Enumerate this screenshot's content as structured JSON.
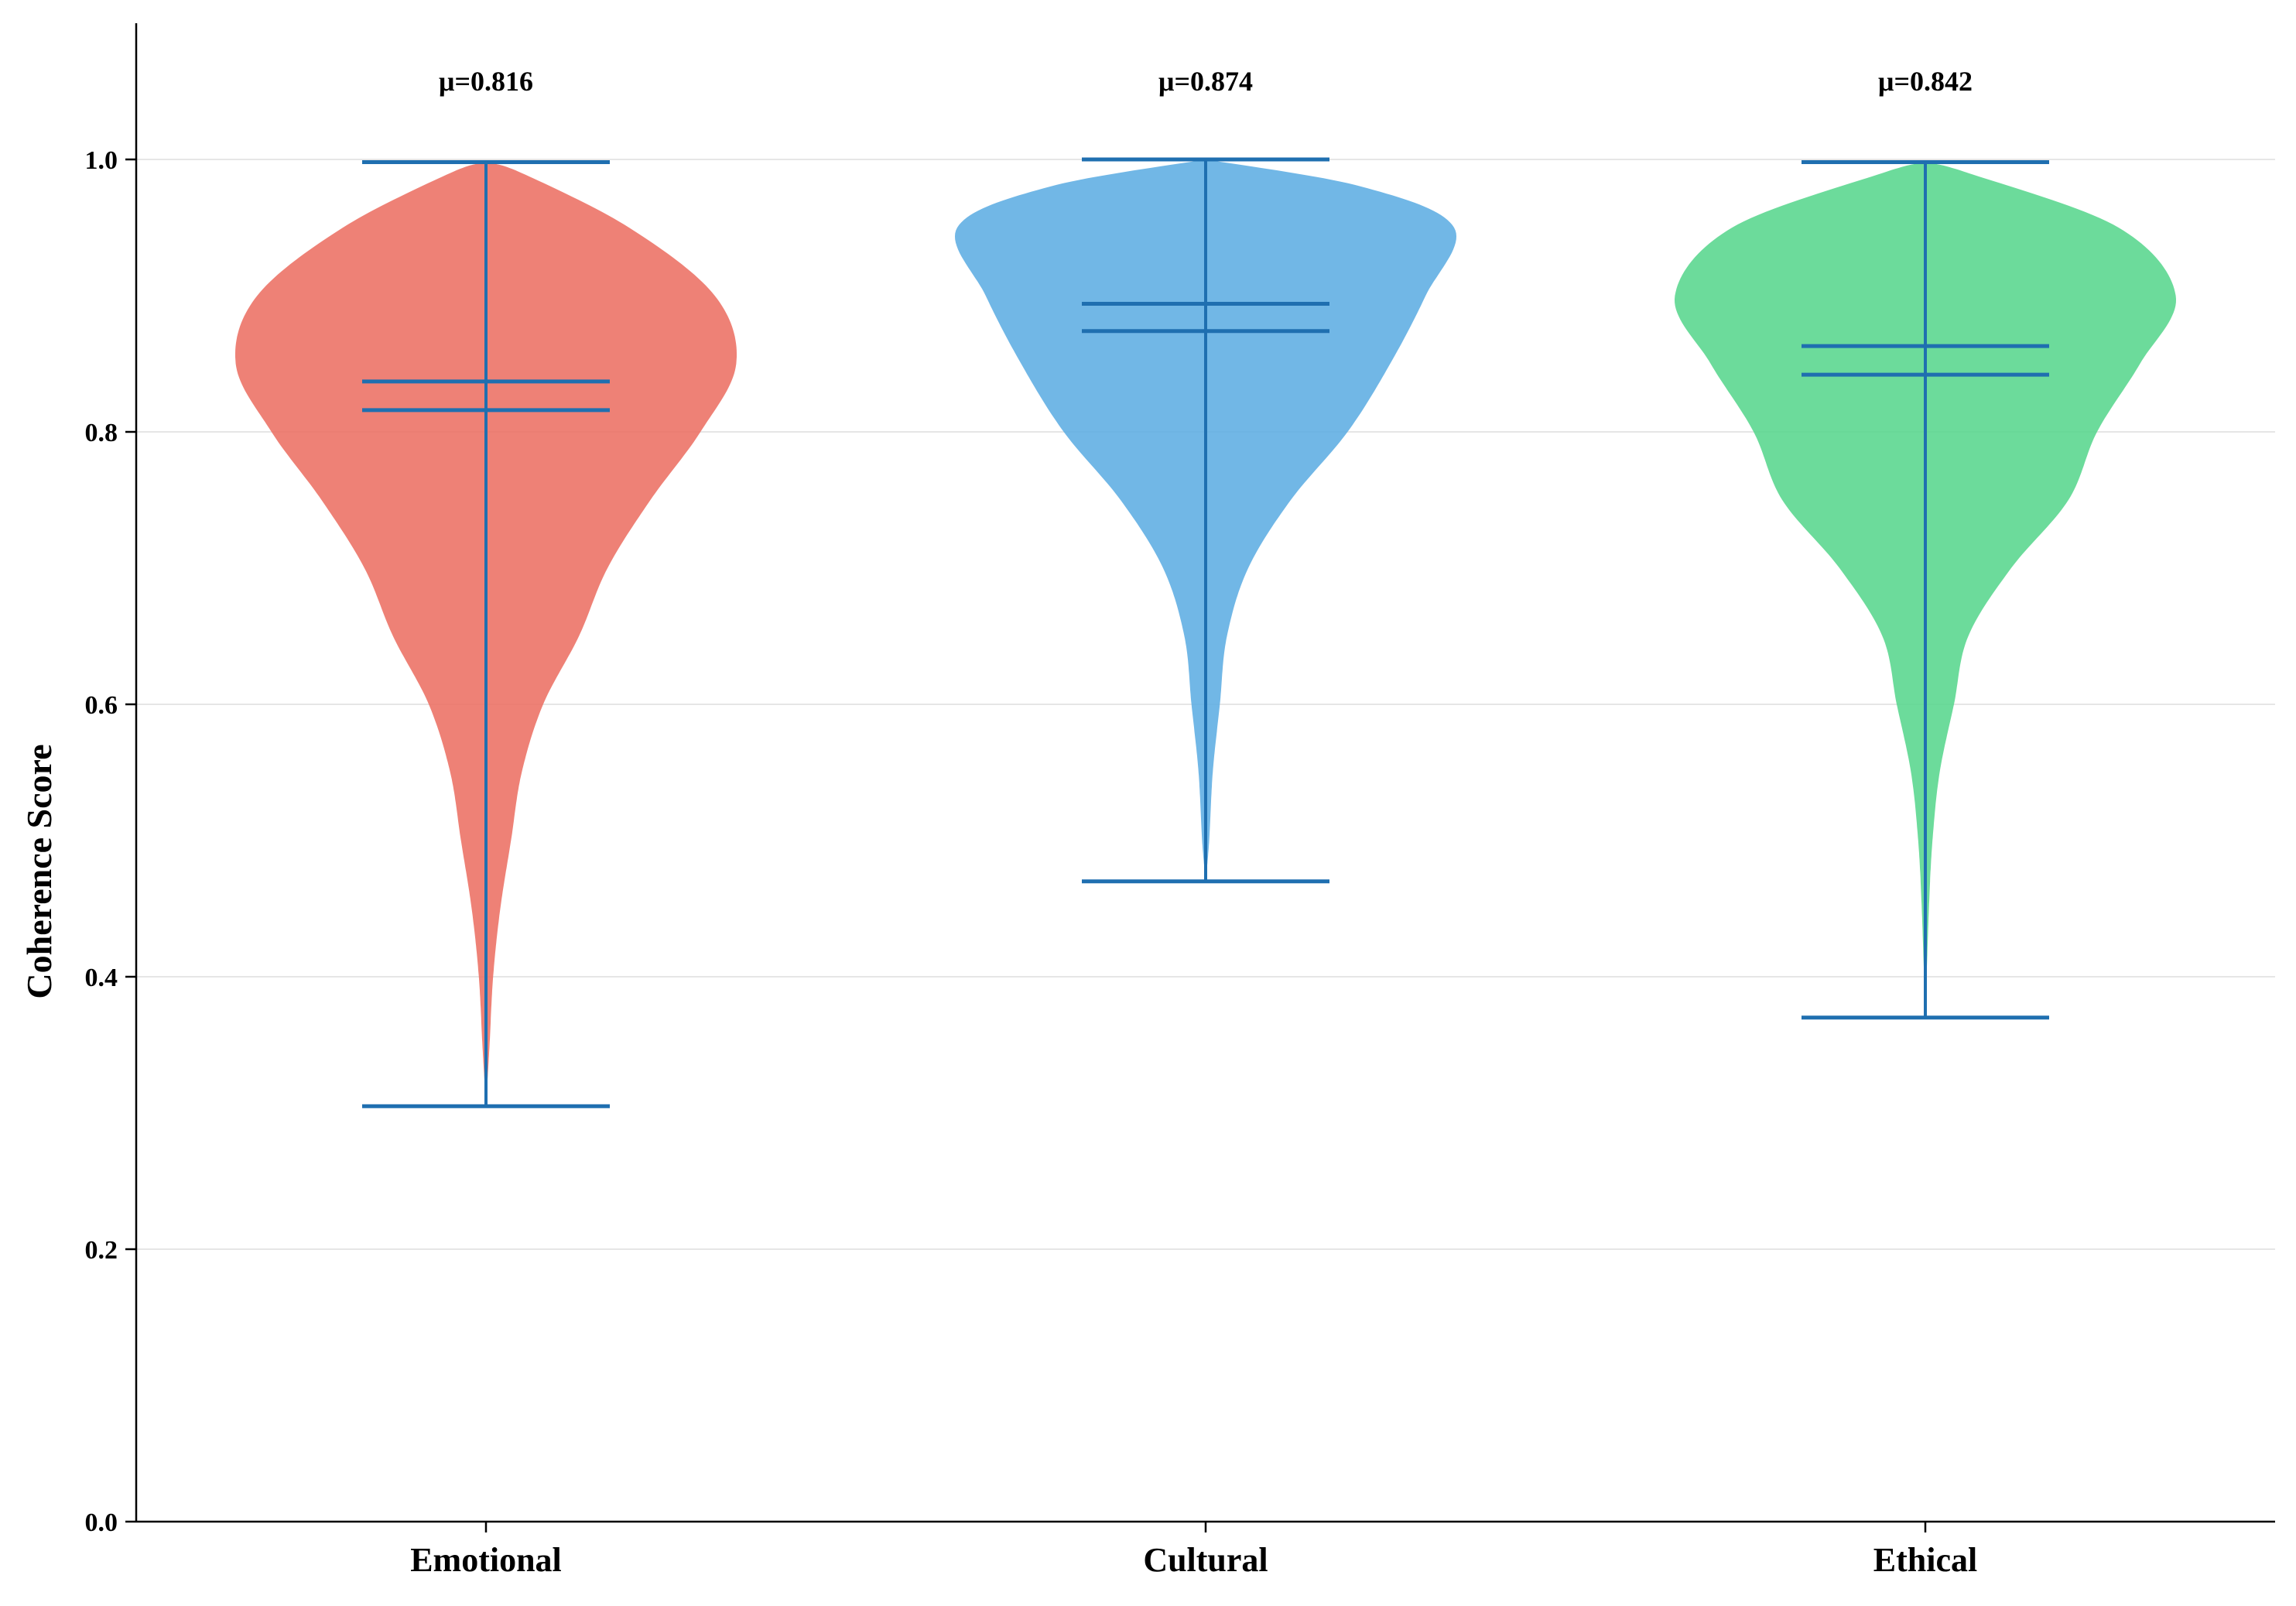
{
  "chart_data": {
    "type": "violin",
    "ylabel": "Coherence Score",
    "ylim": [
      0,
      1.1
    ],
    "yticks": [
      "0.0",
      "0.2",
      "0.4",
      "0.6",
      "0.8",
      "1.0"
    ],
    "grid": "horizontal",
    "categories": [
      "Emotional",
      "Cultural",
      "Ethical"
    ],
    "series": [
      {
        "category": "Emotional",
        "color": "#EC7063",
        "min": 0.305,
        "max": 0.998,
        "mean": 0.816,
        "median": 0.837,
        "mean_label": "μ=0.816",
        "density": [
          [
            0.305,
            0.0
          ],
          [
            0.35,
            0.005
          ],
          [
            0.4,
            0.01
          ],
          [
            0.45,
            0.02
          ],
          [
            0.5,
            0.035
          ],
          [
            0.55,
            0.05
          ],
          [
            0.6,
            0.08
          ],
          [
            0.65,
            0.13
          ],
          [
            0.7,
            0.17
          ],
          [
            0.75,
            0.23
          ],
          [
            0.8,
            0.3
          ],
          [
            0.85,
            0.35
          ],
          [
            0.9,
            0.32
          ],
          [
            0.95,
            0.2
          ],
          [
            0.99,
            0.05
          ],
          [
            0.998,
            0.0
          ]
        ]
      },
      {
        "category": "Cultural",
        "color": "#5DADE2",
        "min": 0.47,
        "max": 1.0,
        "mean": 0.874,
        "median": 0.894,
        "mean_label": "μ=0.874",
        "density": [
          [
            0.47,
            0.0
          ],
          [
            0.5,
            0.005
          ],
          [
            0.55,
            0.01
          ],
          [
            0.6,
            0.02
          ],
          [
            0.65,
            0.03
          ],
          [
            0.7,
            0.06
          ],
          [
            0.75,
            0.12
          ],
          [
            0.8,
            0.2
          ],
          [
            0.85,
            0.26
          ],
          [
            0.9,
            0.31
          ],
          [
            0.95,
            0.35
          ],
          [
            0.98,
            0.22
          ],
          [
            1.0,
            0.0
          ]
        ]
      },
      {
        "category": "Ethical",
        "color": "#58D68D",
        "min": 0.37,
        "max": 0.998,
        "mean": 0.842,
        "median": 0.863,
        "mean_label": "μ=0.842",
        "density": [
          [
            0.37,
            0.0
          ],
          [
            0.45,
            0.005
          ],
          [
            0.5,
            0.01
          ],
          [
            0.55,
            0.02
          ],
          [
            0.6,
            0.04
          ],
          [
            0.65,
            0.06
          ],
          [
            0.7,
            0.12
          ],
          [
            0.75,
            0.2
          ],
          [
            0.8,
            0.24
          ],
          [
            0.85,
            0.3
          ],
          [
            0.9,
            0.35
          ],
          [
            0.95,
            0.27
          ],
          [
            0.99,
            0.06
          ],
          [
            0.998,
            0.0
          ]
        ]
      }
    ],
    "line_color": "#1F6FB0"
  }
}
